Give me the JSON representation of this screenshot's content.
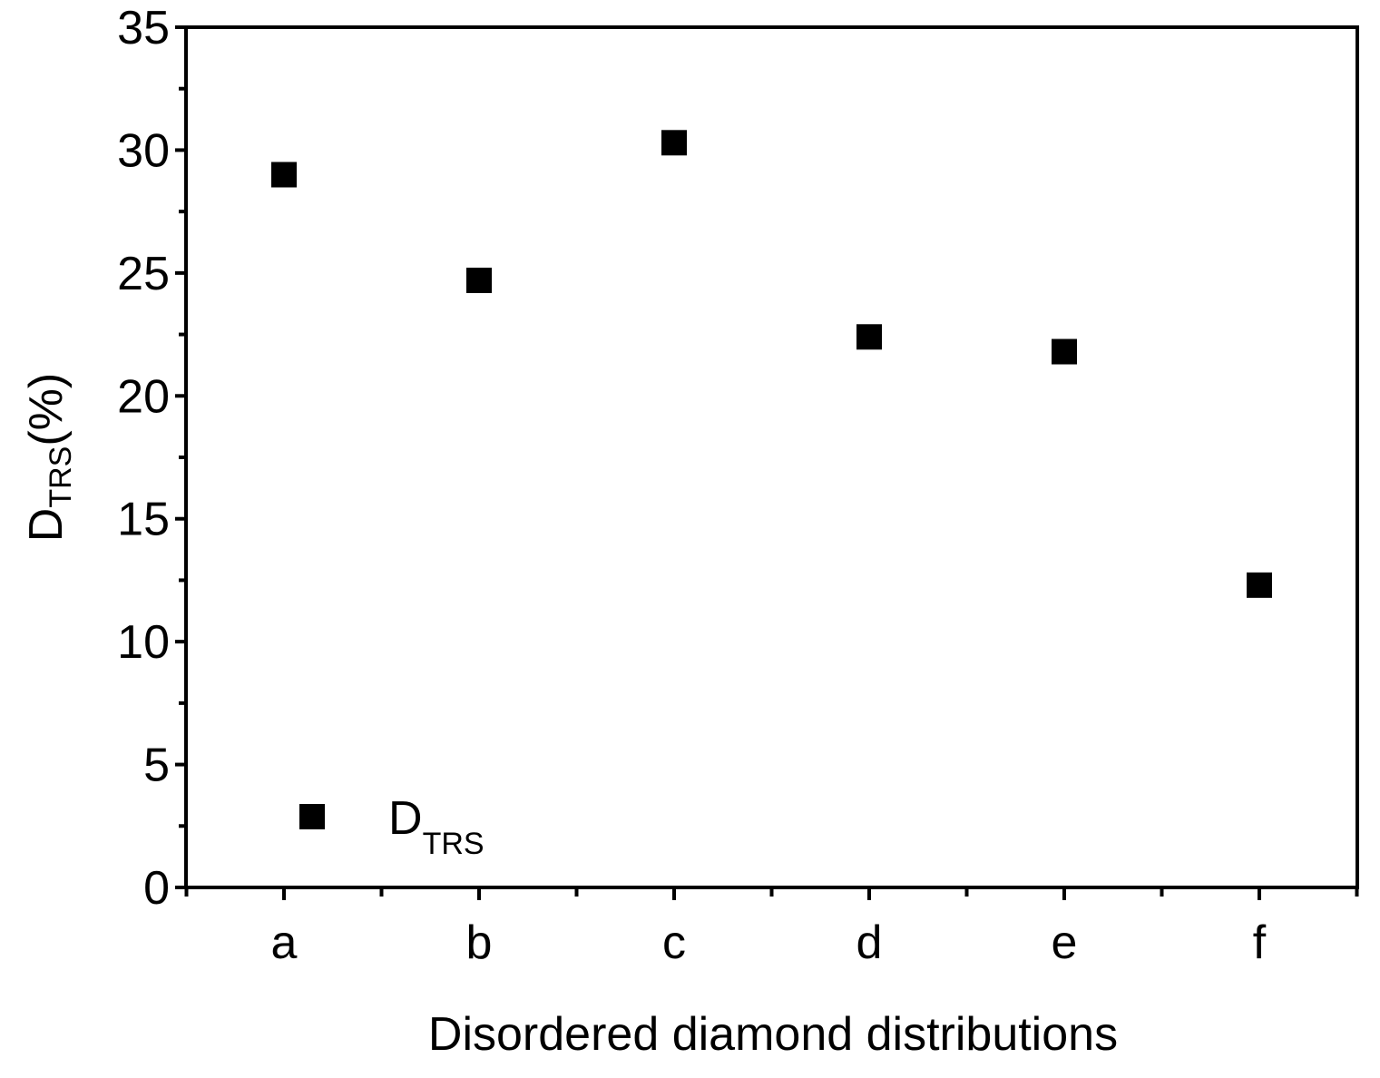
{
  "chart_data": {
    "type": "scatter",
    "categories": [
      "a",
      "b",
      "c",
      "d",
      "e",
      "f"
    ],
    "series": [
      {
        "name": "D_TRS",
        "values": [
          29.0,
          24.7,
          30.3,
          22.4,
          21.8,
          12.3
        ]
      }
    ],
    "xlabel": "Disordered diamond distributions",
    "ylabel_main": "D",
    "ylabel_sub": "TRS",
    "ylabel_unit": "(%)",
    "ylim": [
      0,
      35
    ],
    "yticks": [
      0,
      5,
      10,
      15,
      20,
      25,
      30,
      35
    ],
    "legend": {
      "label_main": "D",
      "label_sub": "TRS",
      "placement": "bottom-left"
    },
    "grid": false,
    "colors": {
      "marker": "#000000",
      "axis": "#000000"
    }
  }
}
